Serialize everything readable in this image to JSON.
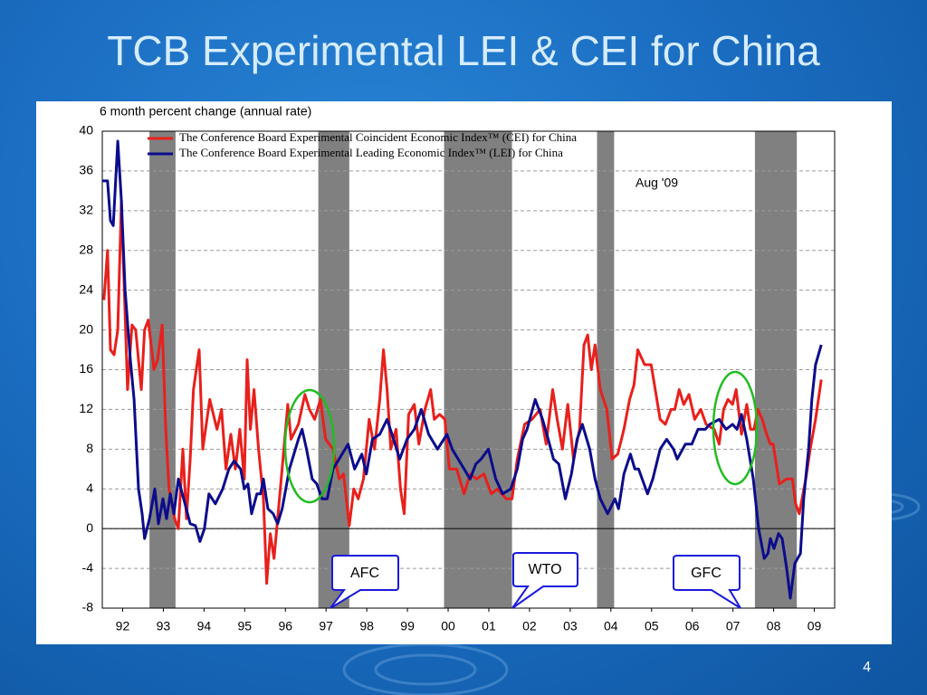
{
  "chart_data": {
    "type": "line",
    "title": "TCB Experimental LEI & CEI for China",
    "ylabel": "6 month percent change (annual rate)",
    "xlim": [
      1992,
      2010
    ],
    "xticks": [
      {
        "value": 1992.5,
        "label": "92"
      },
      {
        "value": 1993.5,
        "label": "93"
      },
      {
        "value": 1994.5,
        "label": "94"
      },
      {
        "value": 1995.5,
        "label": "95"
      },
      {
        "value": 1996.5,
        "label": "96"
      },
      {
        "value": 1997.5,
        "label": "97"
      },
      {
        "value": 1998.5,
        "label": "98"
      },
      {
        "value": 1999.5,
        "label": "99"
      },
      {
        "value": 2000.5,
        "label": "00"
      },
      {
        "value": 2001.5,
        "label": "01"
      },
      {
        "value": 2002.5,
        "label": "02"
      },
      {
        "value": 2003.5,
        "label": "03"
      },
      {
        "value": 2004.5,
        "label": "04"
      },
      {
        "value": 2005.5,
        "label": "05"
      },
      {
        "value": 2006.5,
        "label": "06"
      },
      {
        "value": 2007.5,
        "label": "07"
      },
      {
        "value": 2008.5,
        "label": "08"
      },
      {
        "value": 2009.5,
        "label": "09"
      }
    ],
    "ylim": [
      -8,
      40
    ],
    "yticks": [
      -8,
      -4,
      0,
      4,
      8,
      12,
      16,
      20,
      24,
      28,
      32,
      36,
      40
    ],
    "grid": true,
    "shaded_periods": [
      [
        1993.16,
        1993.8
      ],
      [
        1997.31,
        1998.07
      ],
      [
        2000.4,
        2002.07
      ],
      [
        2004.16,
        2004.58
      ],
      [
        2008.04,
        2009.07
      ]
    ],
    "annotations": [
      "Aug '09",
      "AFC",
      "WTO",
      "GFC"
    ],
    "series": [
      {
        "name": "The Conference Board Experimental Coincident Economic Index™ (CEI) for China",
        "color": "#e8201c",
        "x": [
          1992.04,
          1992.13,
          1992.2,
          1992.29,
          1992.38,
          1992.47,
          1992.62,
          1992.73,
          1992.82,
          1992.96,
          1993.04,
          1993.13,
          1993.27,
          1993.36,
          1993.47,
          1993.56,
          1993.64,
          1993.78,
          1993.87,
          1993.98,
          1994.07,
          1994.16,
          1994.24,
          1994.38,
          1994.47,
          1994.64,
          1994.82,
          1994.93,
          1995.04,
          1995.16,
          1995.27,
          1995.38,
          1995.49,
          1995.56,
          1995.64,
          1995.73,
          1995.84,
          1995.96,
          1996.04,
          1996.13,
          1996.22,
          1996.31,
          1996.44,
          1996.56,
          1996.64,
          1996.82,
          1996.98,
          1997.09,
          1997.22,
          1997.36,
          1997.49,
          1997.67,
          1997.82,
          1997.93,
          1998.07,
          1998.18,
          1998.29,
          1998.42,
          1998.56,
          1998.69,
          1998.82,
          1998.91,
          1999.0,
          1999.09,
          1999.22,
          1999.33,
          1999.42,
          1999.53,
          1999.67,
          1999.78,
          1999.93,
          2000.07,
          2000.16,
          2000.29,
          2000.42,
          2000.53,
          2000.71,
          2000.89,
          2001.04,
          2001.2,
          2001.38,
          2001.56,
          2001.71,
          2001.93,
          2002.07,
          2002.2,
          2002.38,
          2002.56,
          2002.76,
          2002.91,
          2003.07,
          2003.18,
          2003.31,
          2003.44,
          2003.58,
          2003.73,
          2003.84,
          2003.93,
          2004.02,
          2004.11,
          2004.24,
          2004.4,
          2004.53,
          2004.67,
          2004.82,
          2004.96,
          2005.07,
          2005.16,
          2005.33,
          2005.49,
          2005.71,
          2005.84,
          2005.98,
          2006.07,
          2006.18,
          2006.29,
          2006.42,
          2006.56,
          2006.71,
          2006.84,
          2007.04,
          2007.16,
          2007.27,
          2007.38,
          2007.49,
          2007.58,
          2007.71,
          2007.84,
          2007.93,
          2008.02,
          2008.11,
          2008.22,
          2008.33,
          2008.42,
          2008.49,
          2008.64,
          2008.82,
          2008.96,
          2009.04,
          2009.13,
          2009.2,
          2009.29,
          2009.4,
          2009.53,
          2009.67
        ],
        "values": [
          23,
          28,
          18,
          17.5,
          20,
          33,
          14,
          20.5,
          20,
          14,
          20,
          21,
          16,
          17,
          20.5,
          10,
          4,
          1,
          0,
          8,
          1,
          7,
          14,
          18,
          8,
          13,
          10,
          12,
          6,
          9.5,
          6,
          10,
          5,
          17,
          10,
          14,
          8,
          3,
          -5.5,
          -0.5,
          -3,
          1,
          7,
          12.5,
          9,
          10.5,
          13.5,
          12,
          11,
          13,
          9,
          8,
          5,
          5.5,
          0.3,
          4,
          3,
          5,
          11,
          8,
          13,
          18,
          14,
          8,
          10,
          4,
          1.5,
          11.5,
          12.5,
          8.5,
          12,
          14,
          11,
          11.5,
          11,
          6,
          6,
          3.5,
          5.5,
          5,
          5.5,
          3.5,
          4,
          3,
          3,
          7,
          10.5,
          11,
          12,
          8.5,
          14,
          11,
          8,
          12.5,
          7,
          10,
          18.5,
          19.5,
          16,
          18.5,
          14,
          12,
          7,
          7.5,
          10,
          13,
          14.5,
          18,
          16.5,
          16.5,
          11,
          10.5,
          12,
          12,
          14,
          12.5,
          13.5,
          11,
          12,
          10.5,
          10,
          8.5,
          12,
          13,
          12.5,
          14,
          9.5,
          12.5,
          10,
          10,
          12,
          11,
          9.5,
          8.5,
          8.5,
          4.5,
          5,
          5,
          2.5,
          1.5,
          3,
          5,
          8,
          11,
          15
        ]
      },
      {
        "name": "The Conference Board Experimental Leading Economic Index™ (LEI) for China",
        "color": "#0c0c8c",
        "x": [
          1992.0,
          1992.13,
          1992.2,
          1992.27,
          1992.38,
          1992.47,
          1992.56,
          1992.69,
          1992.78,
          1992.89,
          1992.98,
          1993.04,
          1993.16,
          1993.29,
          1993.38,
          1993.49,
          1993.58,
          1993.67,
          1993.76,
          1993.87,
          1994.0,
          1994.16,
          1994.29,
          1994.4,
          1994.51,
          1994.62,
          1994.78,
          1994.96,
          1995.11,
          1995.24,
          1995.4,
          1995.49,
          1995.58,
          1995.67,
          1995.8,
          1995.89,
          1995.96,
          1996.07,
          1996.2,
          1996.31,
          1996.42,
          1996.6,
          1996.82,
          1996.91,
          1997.02,
          1997.16,
          1997.27,
          1997.4,
          1997.53,
          1997.67,
          1997.82,
          1998.04,
          1998.2,
          1998.38,
          1998.49,
          1998.64,
          1998.82,
          1999.0,
          1999.16,
          1999.31,
          1999.49,
          1999.67,
          1999.84,
          2000.02,
          2000.24,
          2000.47,
          2000.6,
          2000.82,
          2001.04,
          2001.18,
          2001.31,
          2001.49,
          2001.67,
          2001.84,
          2002.04,
          2002.2,
          2002.33,
          2002.44,
          2002.64,
          2002.82,
          2002.96,
          2003.09,
          2003.22,
          2003.38,
          2003.53,
          2003.67,
          2003.8,
          2003.98,
          2004.11,
          2004.24,
          2004.42,
          2004.6,
          2004.69,
          2004.82,
          2004.98,
          2005.09,
          2005.18,
          2005.4,
          2005.53,
          2005.71,
          2005.87,
          2006.04,
          2006.13,
          2006.33,
          2006.49,
          2006.64,
          2006.82,
          2006.93,
          2007.16,
          2007.33,
          2007.49,
          2007.6,
          2007.71,
          2007.84,
          2008.0,
          2008.13,
          2008.27,
          2008.36,
          2008.42,
          2008.51,
          2008.62,
          2008.71,
          2008.82,
          2008.91,
          2009.02,
          2009.16,
          2009.24,
          2009.36,
          2009.44,
          2009.53,
          2009.67
        ],
        "values": [
          35,
          35,
          31,
          30.5,
          39,
          33,
          24,
          17,
          13,
          4,
          1.5,
          -1,
          1,
          4,
          0.5,
          3,
          1,
          3.5,
          1.5,
          5,
          3,
          0.5,
          0.3,
          -1.3,
          0,
          3.5,
          2.5,
          4,
          6,
          6.8,
          6,
          4,
          4.5,
          1.5,
          3.5,
          3.5,
          5,
          2,
          1.5,
          0.5,
          2,
          6,
          9,
          10,
          8,
          5,
          4.5,
          3,
          3,
          6,
          7,
          8.5,
          6,
          7.5,
          5.5,
          9,
          9.5,
          11,
          9,
          7,
          9,
          10,
          12,
          9.5,
          8,
          9.5,
          8,
          6.5,
          5,
          6.5,
          7,
          8,
          5,
          3.5,
          4,
          6,
          9,
          10,
          13,
          11,
          9,
          7,
          6.5,
          3,
          5.5,
          9,
          10.5,
          8,
          5,
          3,
          1.5,
          3,
          2,
          5.5,
          7.5,
          6,
          6,
          3.5,
          5,
          8,
          9,
          8,
          7,
          8.5,
          8.5,
          10,
          10,
          10.5,
          11,
          10,
          10.5,
          10,
          11.5,
          9,
          5,
          0,
          -3,
          -2.5,
          -1,
          -2,
          -0.5,
          -1,
          -4,
          -7,
          -3.5,
          -2.5,
          3,
          8,
          13,
          16.5,
          18.5
        ]
      }
    ]
  },
  "slide_number": "4"
}
